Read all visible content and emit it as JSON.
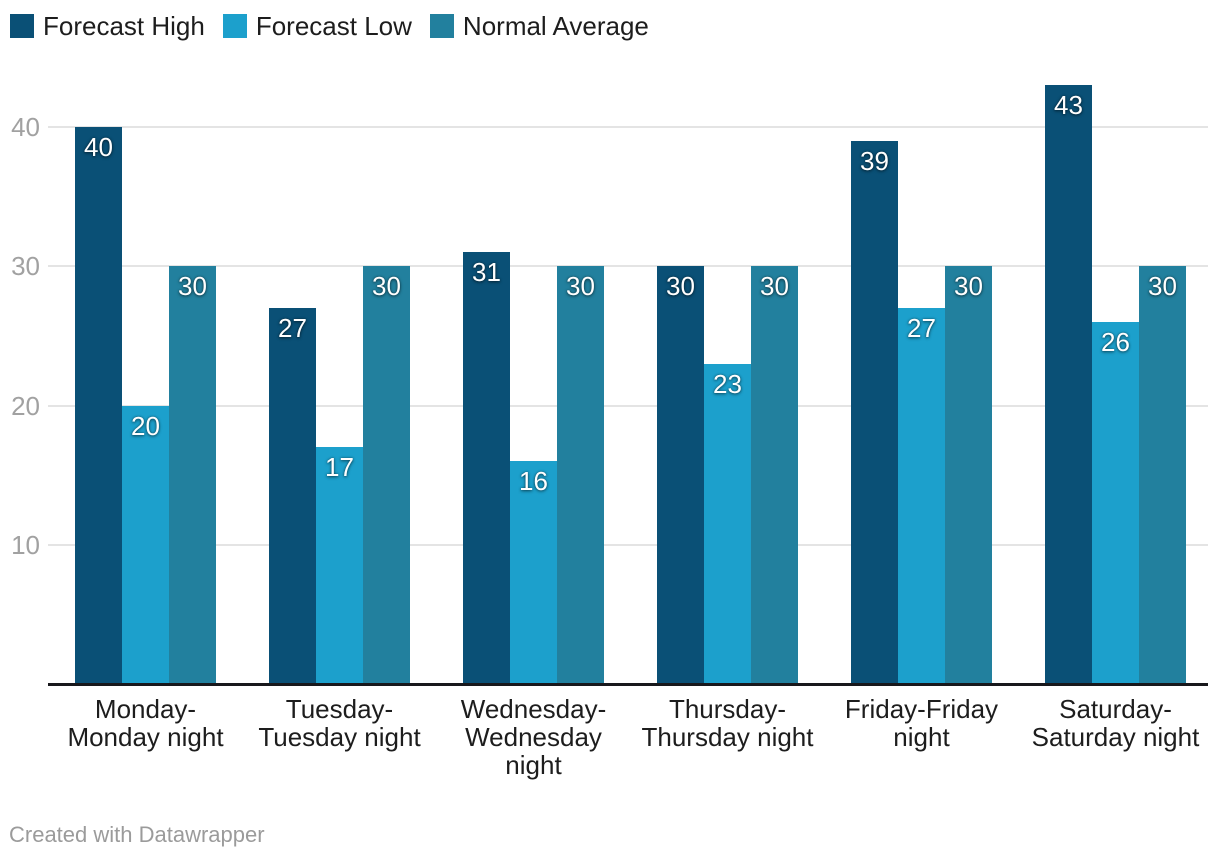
{
  "chart_data": {
    "type": "bar",
    "title": "",
    "categories": [
      "Monday-Monday night",
      "Tuesday-Tuesday night",
      "Wednesday-Wednesday night",
      "Thursday-Thursday night",
      "Friday-Friday night",
      "Saturday-Saturday night"
    ],
    "category_display_lines": [
      [
        "Monday-",
        "Monday night"
      ],
      [
        "Tuesday-",
        "Tuesday night"
      ],
      [
        "Wednesday-",
        "Wednesday",
        "night"
      ],
      [
        "Thursday-",
        "Thursday night"
      ],
      [
        "Friday-Friday",
        "night"
      ],
      [
        "Saturday-",
        "Saturday night"
      ]
    ],
    "series": [
      {
        "name": "Forecast High",
        "color": "#0a5076",
        "values": [
          40,
          27,
          31,
          30,
          39,
          43
        ]
      },
      {
        "name": "Forecast Low",
        "color": "#1ca0cc",
        "values": [
          20,
          17,
          16,
          23,
          27,
          26
        ]
      },
      {
        "name": "Normal Average",
        "color": "#22809e",
        "values": [
          30,
          30,
          30,
          30,
          30,
          30
        ]
      }
    ],
    "y_ticks": [
      10,
      20,
      30,
      40
    ],
    "ylim": [
      0,
      43
    ],
    "grid": "horizontal",
    "legend_position": "top-left",
    "bar_labels": true
  },
  "legend": {
    "items": [
      {
        "label": "Forecast High",
        "color": "#0a5076"
      },
      {
        "label": "Forecast Low",
        "color": "#1ca0cc"
      },
      {
        "label": "Normal Average",
        "color": "#22809e"
      }
    ]
  },
  "footer": {
    "credit": "Created with Datawrapper"
  },
  "colors": {
    "background": "#ffffff",
    "axis_line": "#18181c",
    "gridline": "#e4e4e4",
    "tick_label": "#a1a1a1",
    "category_label": "#1d1d1d",
    "bar_label": "#ffffff",
    "footer_text": "#9b9b9b"
  }
}
